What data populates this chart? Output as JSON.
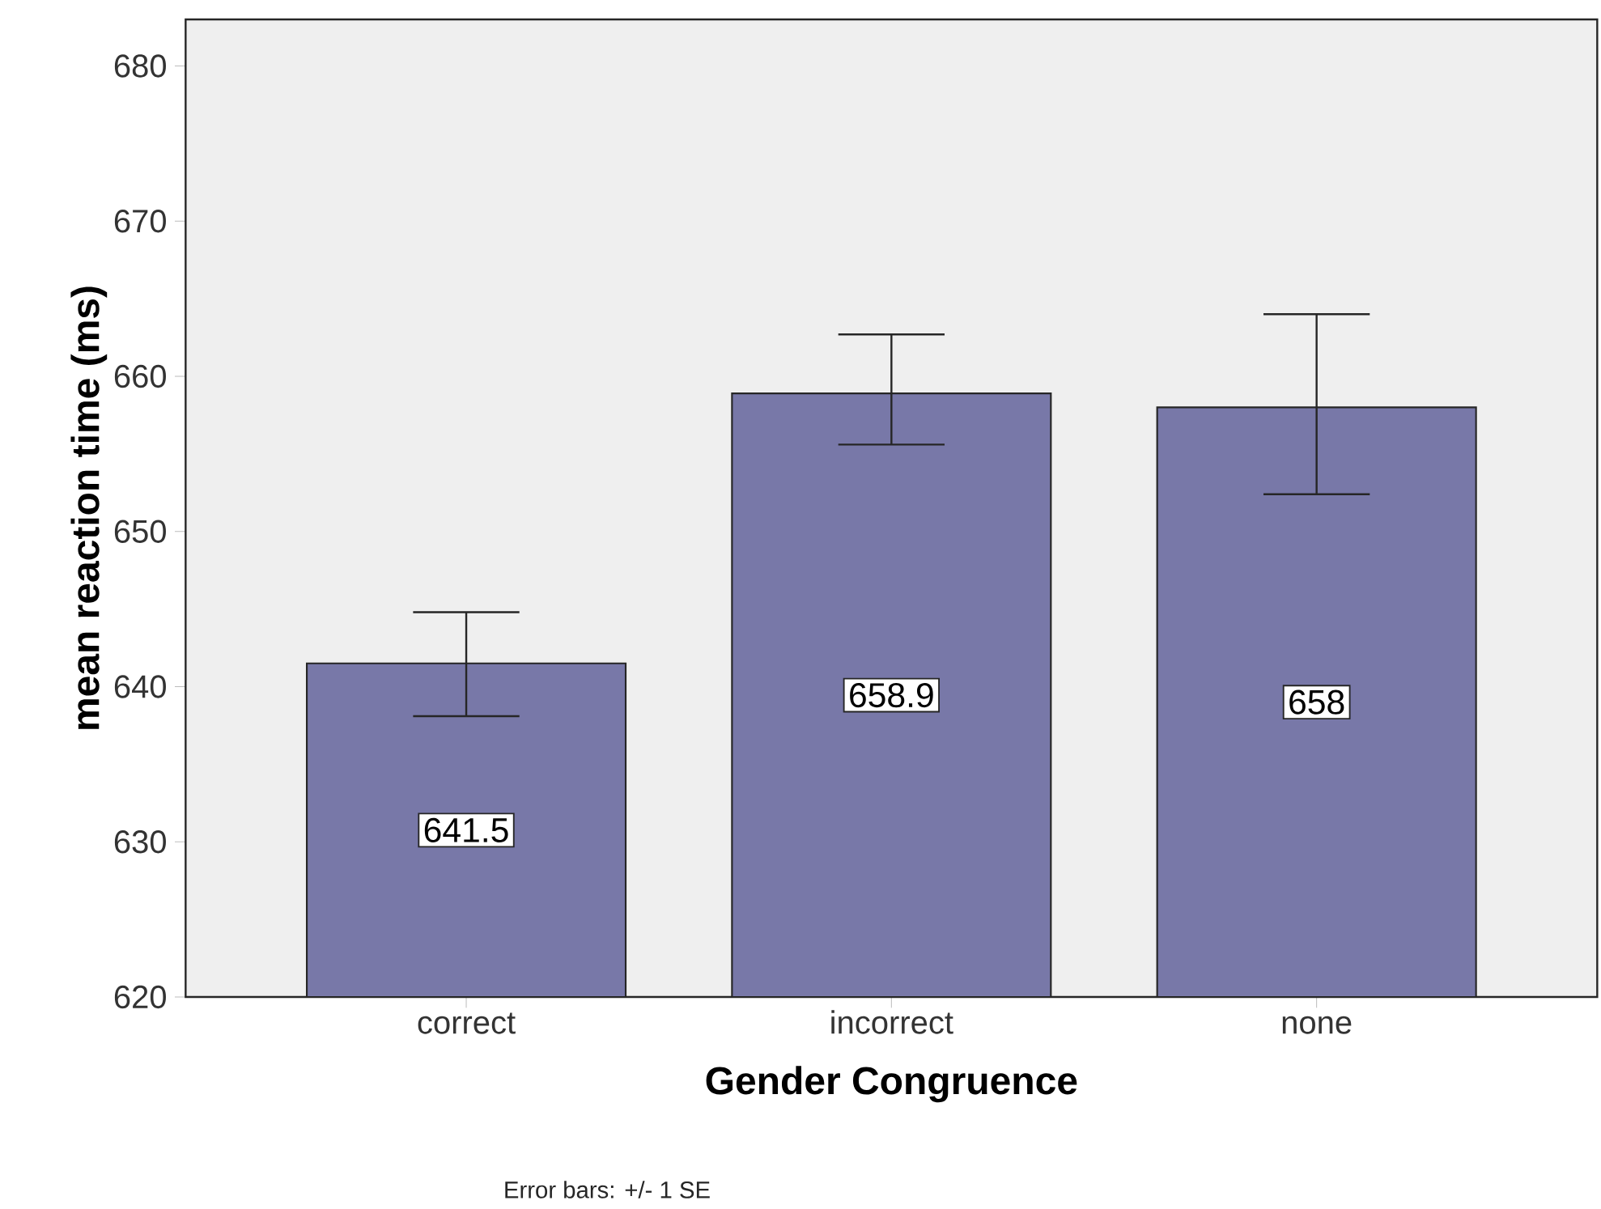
{
  "chart_data": {
    "type": "bar",
    "xlabel": "Gender Congruence",
    "ylabel": "mean reaction time (ms)",
    "categories": [
      "correct",
      "incorrect",
      "none"
    ],
    "values": [
      641.5,
      658.9,
      658
    ],
    "errors": [
      [
        638.1,
        644.8
      ],
      [
        655.6,
        662.7
      ],
      [
        652.4,
        664.0
      ]
    ],
    "color": "#7878a8",
    "data_labels": true,
    "ylim": [
      620,
      683
    ],
    "yticks": [
      620,
      630,
      640,
      650,
      660,
      670,
      680
    ],
    "annotations": [
      "Error bars: +/- 1 SE"
    ]
  }
}
